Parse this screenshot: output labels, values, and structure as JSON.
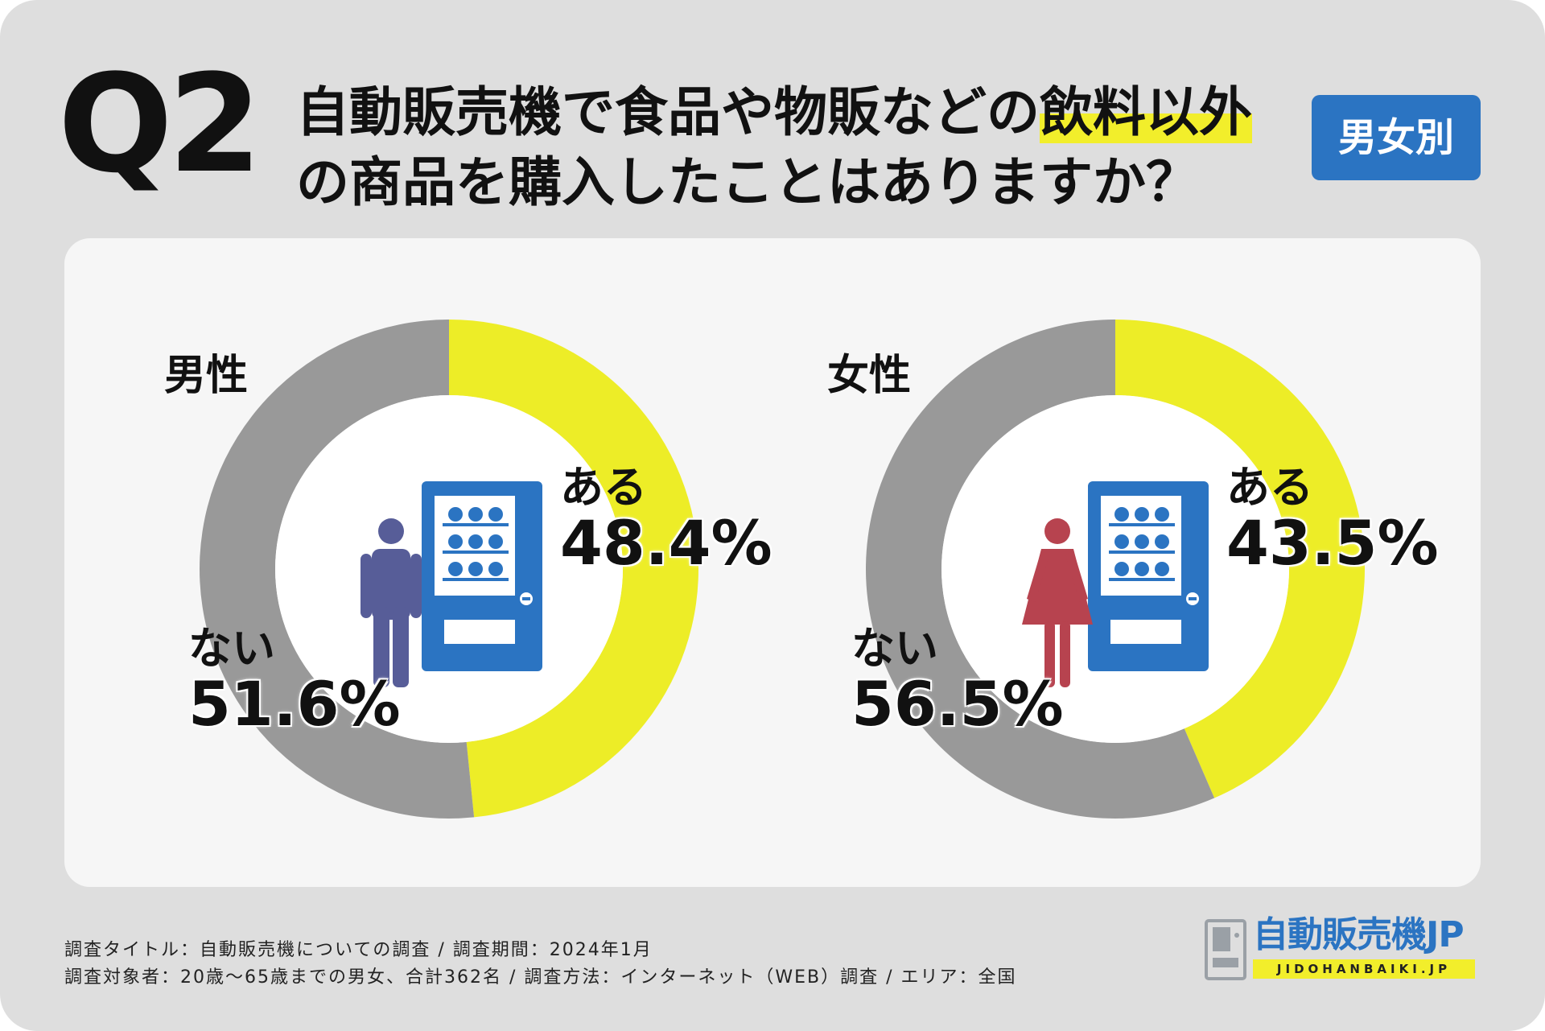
{
  "header": {
    "q_label": "Q2",
    "title_line1_prefix": "自動販売機で食品や物販などの",
    "title_highlight": "飲料以外",
    "title_line2": "の商品を購入したことはありますか？",
    "badge": "男女別"
  },
  "colors": {
    "yes": "#eded27",
    "no": "#999999",
    "machine": "#2b74c2",
    "male_icon": "#575d98",
    "female_icon": "#b7434f",
    "badge": "#2b74c2"
  },
  "chart_data": [
    {
      "type": "pie",
      "title": "男性",
      "categories": [
        "ある",
        "ない"
      ],
      "values": [
        48.4,
        51.6
      ],
      "labels": [
        "48.4%",
        "51.6%"
      ],
      "icon": "male-icon"
    },
    {
      "type": "pie",
      "title": "女性",
      "categories": [
        "ある",
        "ない"
      ],
      "values": [
        43.5,
        56.5
      ],
      "labels": [
        "43.5%",
        "56.5%"
      ],
      "icon": "female-icon"
    }
  ],
  "footer": {
    "line1": "調査タイトル：自動販売機についての調査 / 調査期間：2024年1月",
    "line2": "調査対象者：20歳～65歳までの男女、合計362名 / 調査方法：インターネット（WEB）調査 / エリア：全国"
  },
  "logo": {
    "main": "自動販売機JP",
    "sub": "JIDOHANBAIKI.JP"
  }
}
